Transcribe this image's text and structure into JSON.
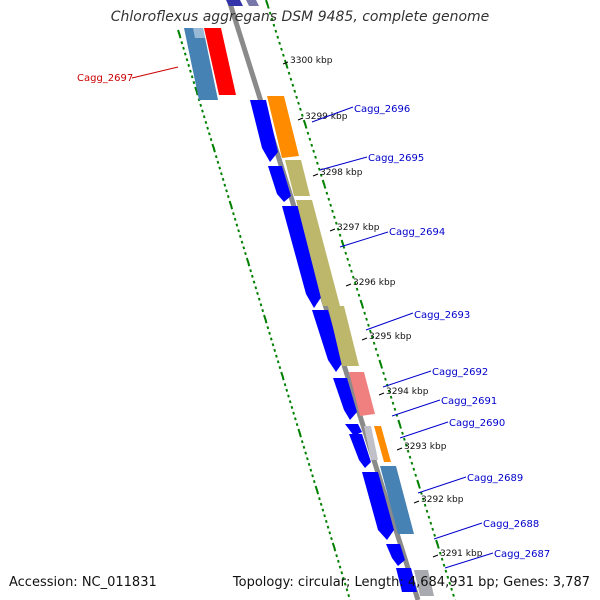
{
  "title": "Chloroflexus aggregans DSM 9485, complete genome",
  "footer": {
    "accession": "Accession: NC_011831",
    "topology": "Topology: circular; Length: 4,684,931 bp; Genes: 3,787"
  },
  "colors": {
    "backbone": "#808080",
    "forward_cds": "#0000ff",
    "label_blue": "#0000cc",
    "label_red": "#cc0000",
    "tick_green": "#008000"
  },
  "ticks": [
    "3300 kbp",
    "3299 kbp",
    "3298 kbp",
    "3297 kbp",
    "3296 kbp",
    "3295 kbp",
    "3294 kbp",
    "3293 kbp",
    "3292 kbp",
    "3291 kbp"
  ],
  "genes": [
    {
      "label": "Cagg_2697",
      "color": "red"
    },
    {
      "label": "Cagg_2696",
      "color": "blue"
    },
    {
      "label": "Cagg_2695",
      "color": "blue"
    },
    {
      "label": "Cagg_2694",
      "color": "blue"
    },
    {
      "label": "Cagg_2693",
      "color": "blue"
    },
    {
      "label": "Cagg_2692",
      "color": "blue"
    },
    {
      "label": "Cagg_2691",
      "color": "blue"
    },
    {
      "label": "Cagg_2690",
      "color": "blue"
    },
    {
      "label": "Cagg_2689",
      "color": "blue"
    },
    {
      "label": "Cagg_2688",
      "color": "blue"
    },
    {
      "label": "Cagg_2687",
      "color": "blue"
    }
  ]
}
